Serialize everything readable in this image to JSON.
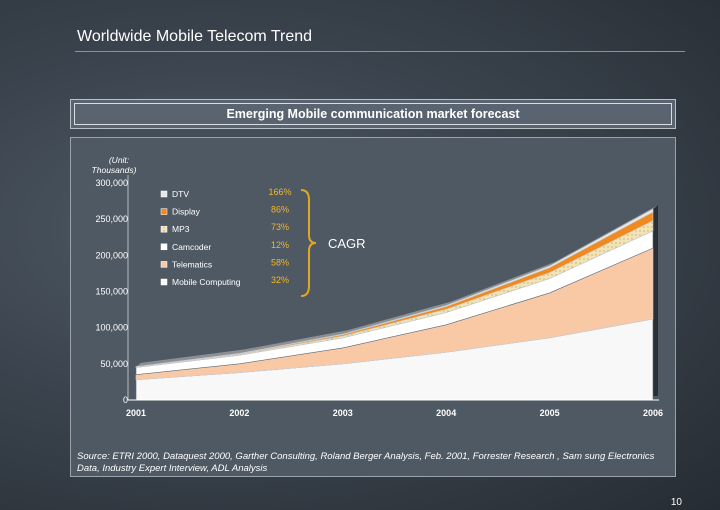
{
  "slide": {
    "title": "Worldwide Mobile Telecom Trend",
    "panel_title": "Emerging Mobile communication market forecast",
    "source": "Source: ETRI 2000, Dataquest 2000, Garther Consulting, Roland Berger Analysis, Feb. 2001, Forrester Research , Sam sung Electronics Data, Industry Expert Interview, ADL Analysis",
    "page_number": "10"
  },
  "chart_data": {
    "type": "area",
    "stacked": true,
    "unit_label": "(Unit: Thousands)",
    "x": [
      "2001",
      "2002",
      "2003",
      "2004",
      "2005",
      "2006"
    ],
    "ylim": [
      0,
      300000
    ],
    "yticks": [
      "0",
      "50,000",
      "100,000",
      "150,000",
      "200,000",
      "250,000",
      "300,000"
    ],
    "grid": false,
    "legend_position": "top-left",
    "cagr_label": "CAGR",
    "series": [
      {
        "name": "Mobile Computing",
        "cagr": "32%",
        "color": "#f8f8f8",
        "values": [
          0,
          0,
          0,
          0,
          0,
          0
        ]
      },
      {
        "name": "Telematics",
        "cagr": "58%",
        "color": "#f8c9a4",
        "values": [
          7000,
          12000,
          22000,
          38000,
          62000,
          98000
        ]
      },
      {
        "name": "Camcoder",
        "cagr": "12%",
        "color": "#ffffff",
        "values": [
          10000,
          12000,
          14000,
          17000,
          20000,
          24000
        ]
      },
      {
        "name": "MP3",
        "cagr": "73%",
        "color": "#f3e3b5",
        "values": [
          500,
          1200,
          2400,
          4500,
          8000,
          14000
        ]
      },
      {
        "name": "Display",
        "cagr": "86%",
        "color": "#f08a1e",
        "values": [
          400,
          900,
          2000,
          3800,
          7000,
          12000
        ]
      },
      {
        "name": "DTV",
        "cagr": "166%",
        "color": "#e8e8e8",
        "values": [
          100,
          300,
          700,
          1300,
          2300,
          4000
        ]
      }
    ],
    "base_layer": {
      "color": "#f8f8f8",
      "values": [
        28000,
        38000,
        50000,
        66000,
        86000,
        112000
      ]
    }
  }
}
